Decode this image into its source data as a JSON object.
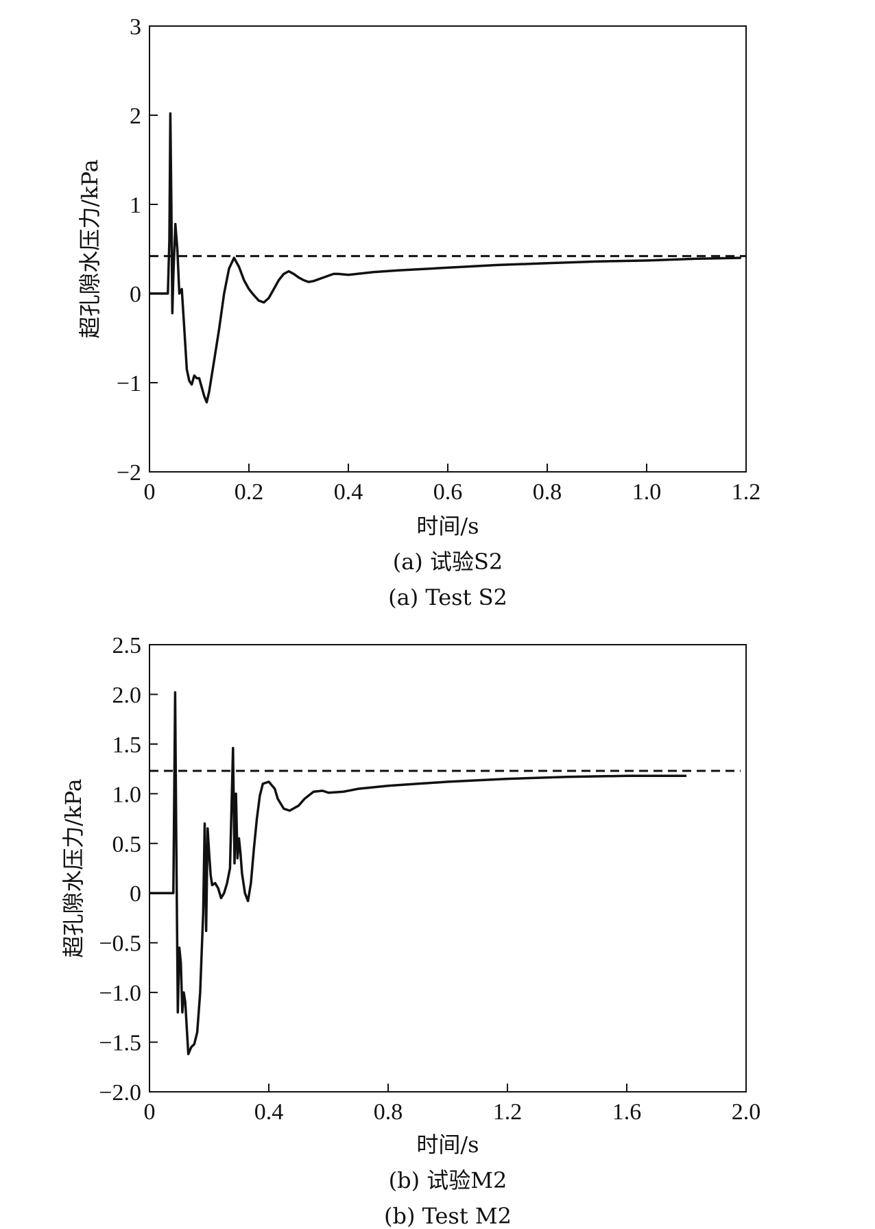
{
  "chart_data": [
    {
      "type": "line",
      "panel": "a",
      "caption_cn": "(a) 试验S2",
      "caption_en": "(a) Test S2",
      "xlabel": "时间/s",
      "ylabel": "超孔隙水压力/kPa",
      "xlim": [
        0,
        1.2
      ],
      "ylim": [
        -2,
        3
      ],
      "xticks": [
        0,
        0.2,
        0.4,
        0.6,
        0.8,
        1.0,
        1.2
      ],
      "xtick_labels": [
        "0",
        "0.2",
        "0.4",
        "0.6",
        "0.8",
        "1.0",
        "1.2"
      ],
      "yticks": [
        -2,
        -1,
        0,
        1,
        2,
        3
      ],
      "ytick_labels": [
        "−2",
        "−1",
        "0",
        "1",
        "2",
        "3"
      ],
      "reference_line": 0.42,
      "grid": false,
      "series": [
        {
          "x": [
            0,
            0.02,
            0.037,
            0.04,
            0.042,
            0.044,
            0.046,
            0.048,
            0.052,
            0.056,
            0.06,
            0.065,
            0.07,
            0.075,
            0.08,
            0.085,
            0.09,
            0.095,
            0.1,
            0.105,
            0.11,
            0.115,
            0.12,
            0.13,
            0.14,
            0.15,
            0.16,
            0.17,
            0.18,
            0.19,
            0.2,
            0.21,
            0.22,
            0.23,
            0.24,
            0.25,
            0.26,
            0.27,
            0.28,
            0.29,
            0.3,
            0.31,
            0.32,
            0.33,
            0.34,
            0.35,
            0.36,
            0.37,
            0.38,
            0.4,
            0.45,
            0.5,
            0.6,
            0.7,
            0.8,
            0.9,
            1.0,
            1.1,
            1.19
          ],
          "y": [
            0,
            0,
            0,
            0.6,
            2.02,
            1.0,
            -0.22,
            0.2,
            0.78,
            0.5,
            0.0,
            0.05,
            -0.4,
            -0.85,
            -0.98,
            -1.02,
            -0.92,
            -0.95,
            -0.95,
            -1.05,
            -1.15,
            -1.22,
            -1.1,
            -0.75,
            -0.4,
            0.0,
            0.28,
            0.4,
            0.3,
            0.15,
            0.05,
            -0.02,
            -0.08,
            -0.1,
            -0.05,
            0.05,
            0.15,
            0.22,
            0.25,
            0.22,
            0.18,
            0.15,
            0.13,
            0.14,
            0.16,
            0.18,
            0.2,
            0.22,
            0.22,
            0.21,
            0.24,
            0.26,
            0.29,
            0.32,
            0.34,
            0.36,
            0.37,
            0.39,
            0.4
          ]
        }
      ]
    },
    {
      "type": "line",
      "panel": "b",
      "caption_cn": "(b) 试验M2",
      "caption_en": "(b) Test M2",
      "xlabel": "时间/s",
      "ylabel": "超孔隙水压力/kPa",
      "xlim": [
        0,
        2.0
      ],
      "ylim": [
        -2.0,
        2.5
      ],
      "xticks": [
        0,
        0.4,
        0.8,
        1.2,
        1.6,
        2.0
      ],
      "xtick_labels": [
        "0",
        "0.4",
        "0.8",
        "1.2",
        "1.6",
        "2.0"
      ],
      "yticks": [
        -2.0,
        -1.5,
        -1.0,
        -0.5,
        0,
        0.5,
        1.0,
        1.5,
        2.0,
        2.5
      ],
      "ytick_labels": [
        "−2.0",
        "−1.5",
        "−1.0",
        "−0.5",
        "0",
        "0.5",
        "1.0",
        "1.5",
        "2.0",
        "2.5"
      ],
      "reference_line": 1.23,
      "grid": false,
      "series": [
        {
          "x": [
            0,
            0.05,
            0.08,
            0.083,
            0.086,
            0.09,
            0.095,
            0.1,
            0.105,
            0.11,
            0.115,
            0.12,
            0.13,
            0.14,
            0.15,
            0.16,
            0.17,
            0.18,
            0.185,
            0.19,
            0.195,
            0.2,
            0.205,
            0.21,
            0.22,
            0.23,
            0.24,
            0.25,
            0.26,
            0.27,
            0.28,
            0.285,
            0.29,
            0.295,
            0.3,
            0.305,
            0.31,
            0.32,
            0.33,
            0.34,
            0.35,
            0.36,
            0.37,
            0.38,
            0.4,
            0.42,
            0.43,
            0.45,
            0.47,
            0.5,
            0.52,
            0.55,
            0.58,
            0.6,
            0.65,
            0.7,
            0.8,
            0.9,
            1.0,
            1.2,
            1.4,
            1.6,
            1.8
          ],
          "y": [
            0,
            0,
            0,
            1.0,
            2.02,
            0.5,
            -1.2,
            -0.55,
            -0.7,
            -1.2,
            -1.0,
            -1.1,
            -1.62,
            -1.55,
            -1.52,
            -1.4,
            -1.0,
            -0.2,
            0.7,
            -0.38,
            0.65,
            0.4,
            0.18,
            0.08,
            0.1,
            0.05,
            -0.05,
            0.0,
            0.1,
            0.25,
            1.46,
            0.3,
            1.0,
            0.35,
            0.55,
            0.4,
            0.2,
            0.0,
            -0.08,
            0.1,
            0.45,
            0.75,
            0.98,
            1.1,
            1.12,
            1.05,
            0.95,
            0.85,
            0.83,
            0.88,
            0.95,
            1.02,
            1.03,
            1.01,
            1.02,
            1.05,
            1.08,
            1.1,
            1.12,
            1.15,
            1.17,
            1.18,
            1.18
          ]
        }
      ]
    }
  ]
}
